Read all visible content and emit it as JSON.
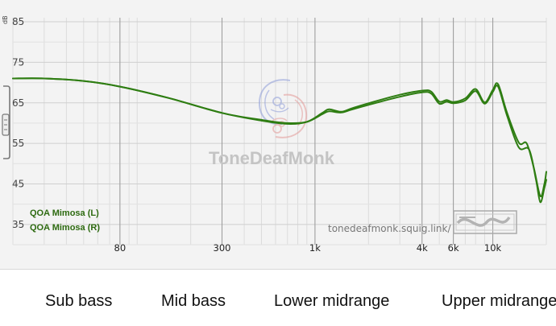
{
  "chart_data": {
    "type": "line",
    "xscale": "log",
    "xlim": [
      20,
      20000
    ],
    "ylim": [
      30,
      86
    ],
    "y_ticks": [
      35,
      45,
      55,
      65,
      75,
      85
    ],
    "x_ticks": [
      {
        "value": 80,
        "label": "80"
      },
      {
        "value": 300,
        "label": "300"
      },
      {
        "value": 1000,
        "label": "1k"
      },
      {
        "value": 4000,
        "label": "4k"
      },
      {
        "value": 6000,
        "label": "6k"
      },
      {
        "value": 10000,
        "label": "10k"
      }
    ],
    "unit_label": "dB",
    "grid": true,
    "series": [
      {
        "name": "QOA Mimosa (L)",
        "color": "#2e7d12",
        "points": [
          [
            20,
            71.0
          ],
          [
            30,
            71.0
          ],
          [
            50,
            70.4
          ],
          [
            80,
            69.0
          ],
          [
            150,
            66.2
          ],
          [
            300,
            62.5
          ],
          [
            500,
            60.8
          ],
          [
            700,
            60.0
          ],
          [
            900,
            60.3
          ],
          [
            1100,
            62.2
          ],
          [
            1200,
            62.9
          ],
          [
            1400,
            62.6
          ],
          [
            1600,
            63.3
          ],
          [
            2000,
            64.5
          ],
          [
            3000,
            66.5
          ],
          [
            4000,
            67.6
          ],
          [
            4500,
            67.3
          ],
          [
            5000,
            64.8
          ],
          [
            5500,
            65.3
          ],
          [
            6000,
            64.9
          ],
          [
            7000,
            65.6
          ],
          [
            8000,
            67.9
          ],
          [
            9000,
            64.8
          ],
          [
            10000,
            67.7
          ],
          [
            10700,
            69.0
          ],
          [
            12000,
            62.0
          ],
          [
            14000,
            54.0
          ],
          [
            16000,
            53.5
          ],
          [
            17500,
            46.0
          ],
          [
            18500,
            40.5
          ],
          [
            19500,
            44.0
          ],
          [
            20000,
            46.0
          ]
        ]
      },
      {
        "name": "QOA Mimosa (R)",
        "color": "#2e7d12",
        "points": [
          [
            20,
            71.0
          ],
          [
            30,
            71.0
          ],
          [
            50,
            70.4
          ],
          [
            80,
            69.0
          ],
          [
            150,
            66.2
          ],
          [
            300,
            62.5
          ],
          [
            500,
            60.6
          ],
          [
            700,
            59.8
          ],
          [
            900,
            60.3
          ],
          [
            1100,
            62.5
          ],
          [
            1200,
            63.4
          ],
          [
            1400,
            62.8
          ],
          [
            1600,
            63.6
          ],
          [
            2000,
            64.9
          ],
          [
            3000,
            67.0
          ],
          [
            4000,
            68.0
          ],
          [
            4500,
            67.8
          ],
          [
            5000,
            65.3
          ],
          [
            5500,
            65.7
          ],
          [
            6000,
            65.2
          ],
          [
            7000,
            66.1
          ],
          [
            8000,
            68.4
          ],
          [
            9000,
            65.1
          ],
          [
            10000,
            68.2
          ],
          [
            10700,
            69.6
          ],
          [
            12000,
            62.7
          ],
          [
            14000,
            55.2
          ],
          [
            15500,
            55.0
          ],
          [
            17000,
            49.0
          ],
          [
            18500,
            42.0
          ],
          [
            19500,
            45.0
          ],
          [
            20000,
            48.0
          ]
        ]
      }
    ]
  },
  "watermark": {
    "brand": "ToneDeafMonk",
    "url": "tonedeafmonk.squig.link/"
  },
  "colors": {
    "curve": "#2e7d12",
    "legend_text": "#2d6a10",
    "panel_bg": "#f3f3f3"
  },
  "ranges": [
    {
      "label": "Sub bass"
    },
    {
      "label": "Mid bass"
    },
    {
      "label": "Lower midrange"
    },
    {
      "label": "Upper midrange"
    }
  ]
}
